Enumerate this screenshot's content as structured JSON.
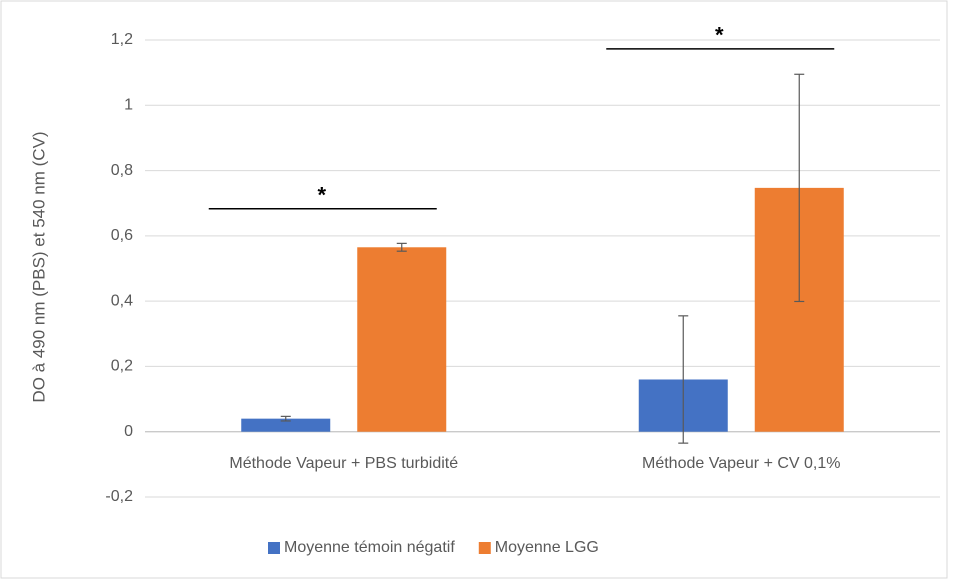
{
  "chart_data": {
    "type": "bar",
    "y_label": "DO à 490 nm (PBS) et 540 nm (CV)",
    "categories": [
      "Méthode Vapeur + PBS turbidité",
      "Méthode Vapeur + CV 0,1%"
    ],
    "series": [
      {
        "name": "Moyenne témoin négatif",
        "color": "#4472c4",
        "values": [
          0.04,
          0.16
        ],
        "errors": [
          0.007,
          0.195
        ]
      },
      {
        "name": "Moyenne LGG",
        "color": "#ed7d31",
        "values": [
          0.565,
          0.747
        ],
        "errors": [
          0.012,
          0.348
        ]
      }
    ],
    "ylim": [
      -0.2,
      1.2
    ],
    "yticks": [
      {
        "value": -0.2,
        "label": "-0,2"
      },
      0,
      {
        "value": 0.2,
        "label": "0,2"
      },
      {
        "value": 0.4,
        "label": "0,4"
      },
      {
        "value": 0.6,
        "label": "0,6"
      },
      {
        "value": 0.8,
        "label": "0,8"
      },
      1,
      {
        "value": 1.2,
        "label": "1,2"
      }
    ],
    "grid": true,
    "legend": "bottom",
    "annotations": [
      {
        "text": "*",
        "category": 0,
        "y": 0.683
      },
      {
        "text": "*",
        "category": 1,
        "y": 1.173
      }
    ]
  }
}
